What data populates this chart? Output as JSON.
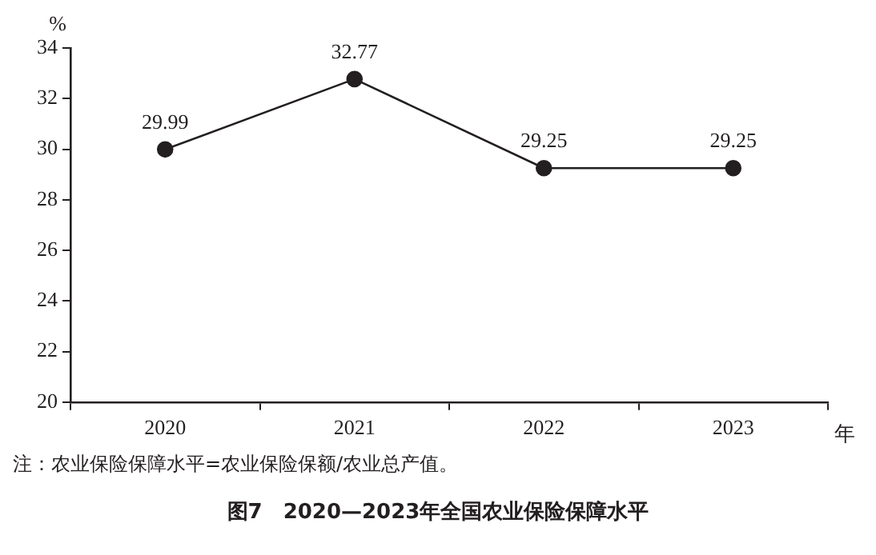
{
  "chart_data": {
    "type": "line",
    "title": "图7　2020—2023年全国农业保险保障水平",
    "xlabel": "年",
    "ylabel": "%",
    "categories": [
      "2020",
      "2021",
      "2022",
      "2023"
    ],
    "series": [
      {
        "color": "#231f20",
        "values": [
          29.99,
          32.77,
          29.25,
          29.25
        ]
      }
    ],
    "ylim": [
      20,
      34
    ],
    "yticks": [
      20,
      22,
      24,
      26,
      28,
      30,
      32,
      34
    ],
    "grid": false,
    "legend": false,
    "marker": "circle",
    "line_style": "solid",
    "data_labels": true,
    "annotations": [
      "注：农业保险保障水平=农业保险保额/农业总产值。"
    ]
  }
}
